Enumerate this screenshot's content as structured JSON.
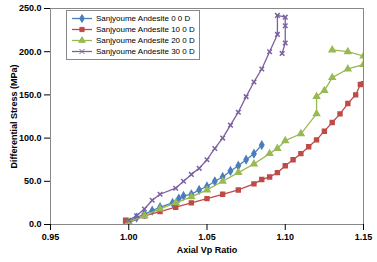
{
  "chart_data": {
    "type": "line",
    "x_label": "Axial Vp Ratio",
    "y_label": "Differential Stress (MPa)",
    "xlim": [
      0.95,
      1.15
    ],
    "xticks": [
      {
        "value": 0.95,
        "label": "0.95"
      },
      {
        "value": 1,
        "label": "1.00"
      },
      {
        "value": 1.05,
        "label": "1.05"
      },
      {
        "value": 1.1,
        "label": "1.10"
      },
      {
        "value": 1.15,
        "label": "1.15"
      }
    ],
    "ylim": [
      0,
      250
    ],
    "yticks": [
      {
        "value": 0,
        "label": "0.0"
      },
      {
        "value": 50,
        "label": "50.0"
      },
      {
        "value": 100,
        "label": "100.0"
      },
      {
        "value": 150,
        "label": "150.0"
      },
      {
        "value": 200,
        "label": "200.0"
      },
      {
        "value": 250,
        "label": "250.0"
      }
    ],
    "grid": false,
    "legend": "top-left",
    "series": [
      {
        "name": "Sanjyoume Andesite 0 0 D",
        "color": "#4a7ebb",
        "marker": "diamond",
        "x": [
          0.998,
          1.005,
          1.01,
          1.015,
          1.02,
          1.028,
          1.032,
          1.035,
          1.04,
          1.045,
          1.05,
          1.055,
          1.06,
          1.065,
          1.07,
          1.075,
          1.08,
          1.085
        ],
        "values": [
          2,
          8,
          12,
          16,
          20,
          25,
          30,
          33,
          35,
          40,
          44,
          50,
          55,
          62,
          68,
          75,
          82,
          92
        ]
      },
      {
        "name": "Sanjyoume Andesite 10 0 D",
        "color": "#be4b48",
        "marker": "square",
        "x": [
          0.998,
          1.0,
          1.01,
          1.02,
          1.03,
          1.04,
          1.05,
          1.06,
          1.07,
          1.08,
          1.085,
          1.09,
          1.095,
          1.1,
          1.105,
          1.11,
          1.115,
          1.12,
          1.125,
          1.13,
          1.135,
          1.14,
          1.145,
          1.148,
          1.15
        ],
        "values": [
          5,
          2,
          10,
          15,
          20,
          25,
          30,
          35,
          40,
          47,
          52,
          55,
          60,
          68,
          75,
          82,
          90,
          98,
          108,
          118,
          128,
          140,
          150,
          162,
          163
        ]
      },
      {
        "name": "Sanjyoume Andesite 20 0 D",
        "color": "#98b954",
        "marker": "triangle",
        "x": [
          1.0,
          1.01,
          1.02,
          1.03,
          1.04,
          1.05,
          1.06,
          1.07,
          1.08,
          1.09,
          1.095,
          1.1,
          1.11,
          1.12,
          1.12,
          1.125,
          1.13,
          1.14,
          1.15,
          1.15,
          1.14,
          1.13
        ],
        "values": [
          3,
          10,
          18,
          25,
          32,
          40,
          50,
          60,
          70,
          82,
          88,
          97,
          105,
          128,
          148,
          155,
          170,
          180,
          185,
          195,
          200,
          202
        ]
      },
      {
        "name": "Sanjyoume Andesite 30 0 D",
        "color": "#7d60a0",
        "marker": "x",
        "x": [
          1.0,
          1.005,
          1.01,
          1.015,
          1.02,
          1.03,
          1.035,
          1.04,
          1.045,
          1.05,
          1.055,
          1.06,
          1.065,
          1.07,
          1.075,
          1.08,
          1.085,
          1.09,
          1.095,
          1.095,
          1.1,
          1.1,
          1.1,
          1.098
        ],
        "values": [
          5,
          10,
          18,
          28,
          35,
          42,
          50,
          58,
          65,
          75,
          88,
          100,
          115,
          130,
          148,
          165,
          180,
          200,
          220,
          242,
          240,
          230,
          210,
          198
        ]
      }
    ]
  }
}
